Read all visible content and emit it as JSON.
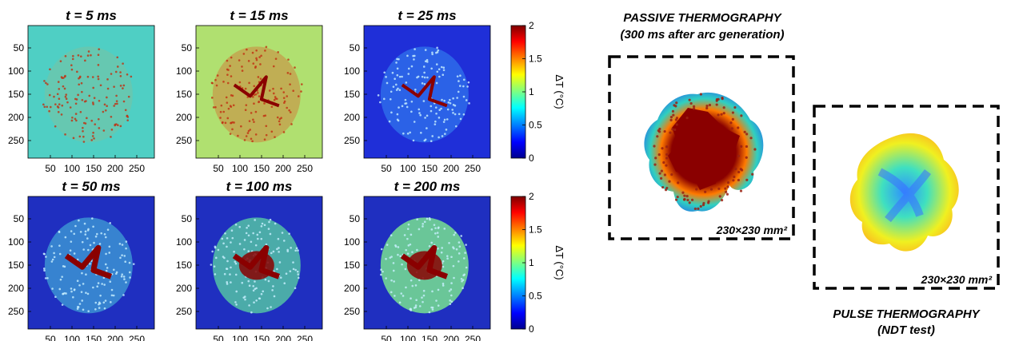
{
  "panels": [
    {
      "title": "t = 5 ms",
      "background": "#4fcfc4",
      "hot_spot": "#e8a048",
      "crack": false,
      "glow": 0.15
    },
    {
      "title": "t = 15 ms",
      "background": "#b0e070",
      "hot_spot": "#e05020",
      "crack": true,
      "glow": 0.35
    },
    {
      "title": "t = 25 ms",
      "background": "#1f2fd8",
      "hot_spot": "#3fb0ff",
      "crack": true,
      "glow": 0.4
    },
    {
      "title": "t = 50 ms",
      "background": "#1f2fc0",
      "hot_spot": "#4fd8e0",
      "crack": true,
      "glow": 0.5
    },
    {
      "title": "t = 100 ms",
      "background": "#1f2fc0",
      "hot_spot": "#5ee0a0",
      "crack": true,
      "glow": 0.7
    },
    {
      "title": "t = 200 ms",
      "background": "#1f2fc0",
      "hot_spot": "#78e090",
      "crack": true,
      "glow": 0.85
    }
  ],
  "axis_ticks": {
    "x": [
      "50",
      "100",
      "150",
      "200",
      "250"
    ],
    "y": [
      "50",
      "100",
      "150",
      "200",
      "250"
    ]
  },
  "colorbar": {
    "label": "ΔT (°C)",
    "ticks": [
      "2",
      "1.5",
      "1",
      "0.5",
      "0"
    ],
    "stops": [
      "#7f0000",
      "#ff0000",
      "#ffff00",
      "#00ffff",
      "#0000ff",
      "#00008f"
    ]
  },
  "passive": {
    "title_line1": "PASSIVE THERMOGRAPHY",
    "title_line2": "(300 ms after arc generation)",
    "dimension": "230×230 mm²"
  },
  "pulse": {
    "title_line1": "PULSE THERMOGRAPHY",
    "title_line2": "(NDT test)",
    "dimension": "230×230 mm²"
  }
}
